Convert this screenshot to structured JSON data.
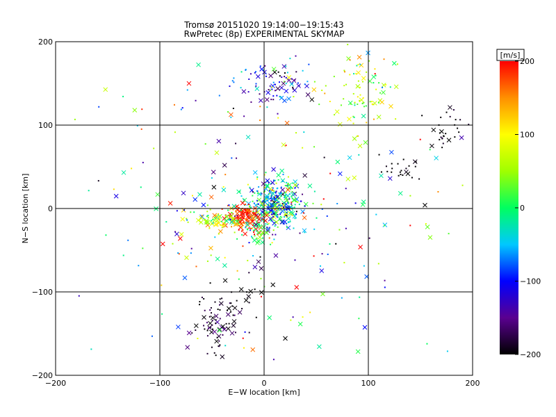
{
  "chart_data": {
    "type": "scatter",
    "title": "Tromsø 20151020 19:14:00−19:15:43",
    "subtitle": "RwPretec (8p) EXPERIMENTAL SKYMAP",
    "xlabel": "E−W location [km]",
    "ylabel": "N−S location [km]",
    "xlim": [
      -200,
      200
    ],
    "ylim": [
      -200,
      200
    ],
    "x_ticks": [
      -200,
      -100,
      0,
      100,
      200
    ],
    "y_ticks": [
      -200,
      -100,
      0,
      100,
      200
    ],
    "x_tick_labels": [
      "−200",
      "−100",
      "0",
      "100",
      "200"
    ],
    "y_tick_labels": [
      "−200",
      "−100",
      "0",
      "100",
      "200"
    ],
    "grid": true,
    "colorbar": {
      "label": "[m/s]",
      "min": -200,
      "max": 200,
      "ticks": [
        -200,
        -100,
        0,
        100,
        200
      ],
      "tick_labels": [
        "−200",
        "−100",
        "0",
        "100",
        "200"
      ],
      "colors": [
        "#000000",
        "#5a0090",
        "#0000ff",
        "#00c8ff",
        "#00ff60",
        "#a0ff00",
        "#ffff00",
        "#ff9000",
        "#ff0000"
      ]
    },
    "marker_types": [
      "x",
      "dot"
    ],
    "clusters": [
      {
        "cx": 10,
        "cy": 5,
        "sx": 14,
        "sy": 15,
        "n": 360,
        "v": -40,
        "vs": 70
      },
      {
        "cx": -18,
        "cy": -10,
        "sx": 10,
        "sy": 7,
        "n": 130,
        "v": 190,
        "vs": 25
      },
      {
        "cx": -45,
        "cy": -15,
        "sx": 14,
        "sy": 6,
        "n": 80,
        "v": 60,
        "vs": 60
      },
      {
        "cx": -5,
        "cy": -30,
        "sx": 8,
        "sy": 8,
        "n": 40,
        "v": 10,
        "vs": 40
      },
      {
        "cx": 10,
        "cy": 150,
        "sx": 18,
        "sy": 14,
        "n": 90,
        "v": -120,
        "vs": 60
      },
      {
        "cx": 95,
        "cy": 140,
        "sx": 16,
        "sy": 25,
        "n": 90,
        "v": 60,
        "vs": 50
      },
      {
        "cx": 170,
        "cy": 100,
        "sx": 10,
        "sy": 12,
        "n": 28,
        "v": -200,
        "vs": 10
      },
      {
        "cx": 130,
        "cy": 50,
        "sx": 10,
        "sy": 8,
        "n": 22,
        "v": -200,
        "vs": 10
      },
      {
        "cx": -48,
        "cy": -145,
        "sx": 10,
        "sy": 14,
        "n": 60,
        "v": -190,
        "vs": 20
      },
      {
        "cx": -30,
        "cy": -110,
        "sx": 15,
        "sy": 15,
        "n": 30,
        "v": -200,
        "vs": 10
      },
      {
        "cx": 0,
        "cy": 0,
        "sx": 90,
        "sy": 95,
        "n": 260,
        "v": 0,
        "vs": 120
      }
    ]
  }
}
